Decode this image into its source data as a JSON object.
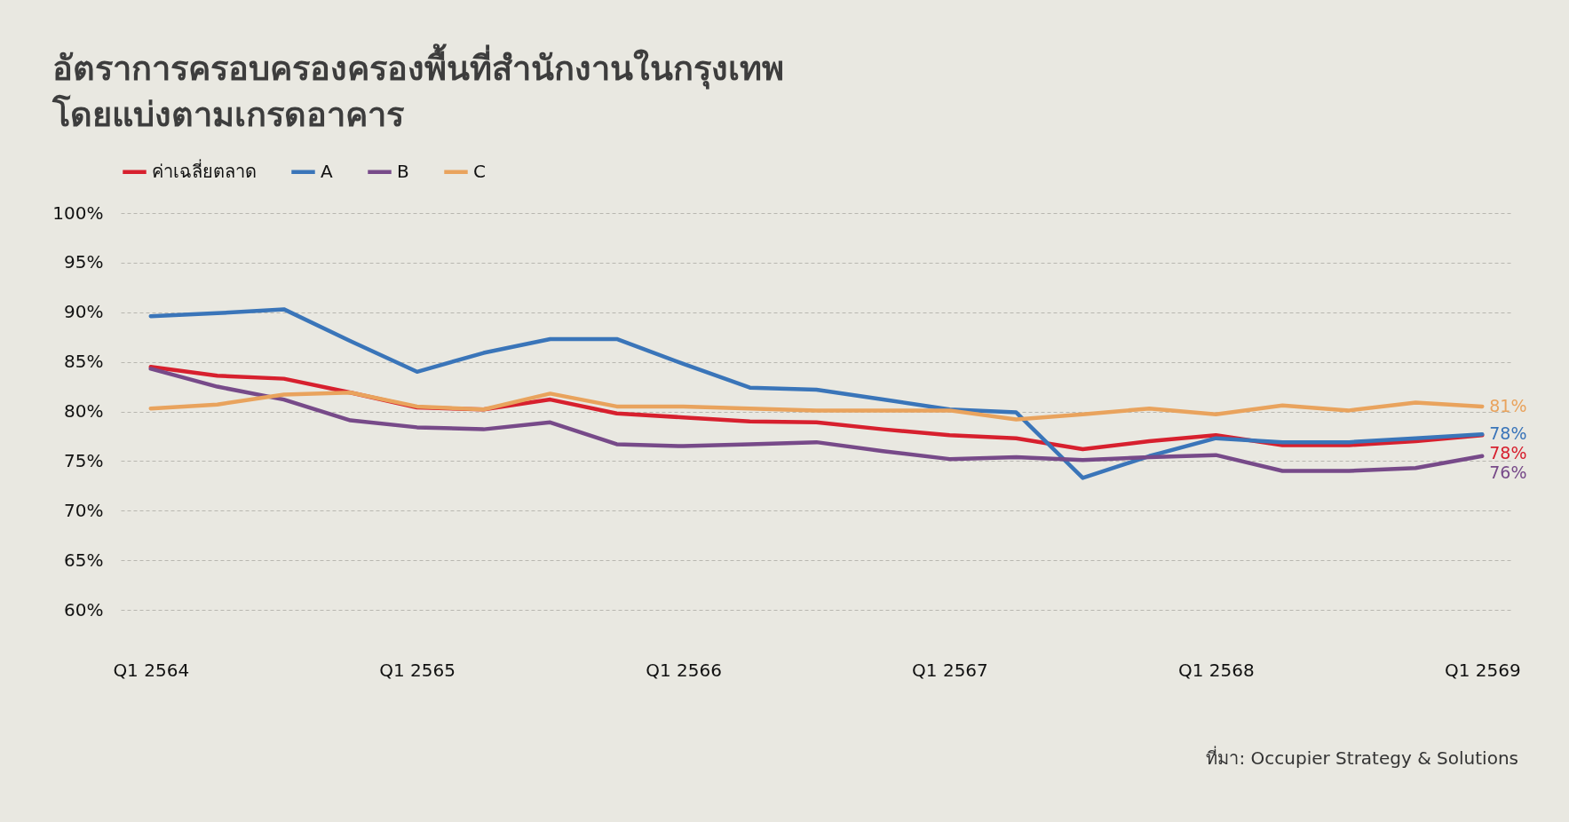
{
  "chart_data": {
    "type": "line",
    "title": "อัตราการครอบครองครองพื้นที่สำนักงานในกรุงเทพ\nโดยแบ่งตามเกรดอาคาร",
    "categories": [
      "Q1 2564",
      null,
      null,
      null,
      "Q1 2565",
      null,
      null,
      null,
      "Q1 2566",
      null,
      null,
      null,
      "Q1 2567",
      null,
      null,
      null,
      "Q1 2568",
      null,
      null,
      null,
      "Q1 2569"
    ],
    "series": [
      {
        "name": "ค่าเฉลี่ยตลาด",
        "color": "#d7202e",
        "values": [
          84.5,
          83.6,
          83.3,
          81.9,
          80.4,
          80.2,
          81.2,
          79.8,
          79.4,
          79.0,
          78.9,
          78.2,
          77.6,
          77.3,
          76.2,
          77.0,
          77.6,
          76.6,
          76.6,
          77.0,
          77.6
        ],
        "value_labels": [
          null,
          null,
          null,
          null,
          null,
          null,
          null,
          null,
          null,
          null,
          null,
          null,
          null,
          null,
          null,
          null,
          null,
          null,
          null,
          null,
          "78%"
        ]
      },
      {
        "name": "A",
        "color": "#3a75b9",
        "values": [
          89.6,
          89.9,
          90.3,
          87.1,
          84.0,
          85.9,
          87.3,
          87.3,
          84.8,
          82.4,
          82.2,
          81.2,
          80.2,
          79.9,
          73.3,
          75.5,
          77.3,
          76.9,
          76.9,
          77.3,
          77.7
        ],
        "value_labels": [
          null,
          null,
          null,
          null,
          null,
          null,
          null,
          null,
          null,
          null,
          null,
          null,
          null,
          null,
          null,
          null,
          null,
          null,
          null,
          null,
          "78%"
        ]
      },
      {
        "name": "B",
        "color": "#774a89",
        "values": [
          84.3,
          82.5,
          81.2,
          79.1,
          78.4,
          78.2,
          78.9,
          76.7,
          76.5,
          76.7,
          76.9,
          76.0,
          75.2,
          75.4,
          75.1,
          75.4,
          75.6,
          74.0,
          74.0,
          74.3,
          75.5
        ],
        "value_labels": [
          null,
          null,
          null,
          null,
          null,
          null,
          null,
          null,
          null,
          null,
          null,
          null,
          null,
          null,
          null,
          null,
          null,
          null,
          null,
          null,
          "76%"
        ]
      },
      {
        "name": "C",
        "color": "#e9a35d",
        "values": [
          80.3,
          80.7,
          81.7,
          81.9,
          80.5,
          80.2,
          81.8,
          80.5,
          80.5,
          80.3,
          80.1,
          80.1,
          80.1,
          79.2,
          79.7,
          80.3,
          79.7,
          80.6,
          80.1,
          80.9,
          80.5
        ],
        "value_labels": [
          null,
          null,
          null,
          null,
          null,
          null,
          null,
          null,
          null,
          null,
          null,
          null,
          null,
          null,
          null,
          null,
          null,
          null,
          null,
          null,
          "81%"
        ]
      }
    ],
    "ylim": [
      60,
      100
    ],
    "yticks": [
      {
        "value": 60,
        "label": "60%"
      },
      {
        "value": 65,
        "label": "65%"
      },
      {
        "value": 70,
        "label": "70%"
      },
      {
        "value": 75,
        "label": "75%"
      },
      {
        "value": 80,
        "label": "80%"
      },
      {
        "value": 85,
        "label": "85%"
      },
      {
        "value": 90,
        "label": "90%"
      },
      {
        "value": 95,
        "label": "95%"
      },
      {
        "value": 100,
        "label": "100%"
      }
    ],
    "grid": "y",
    "legend": "top left",
    "marker": "none",
    "line_style": "solid",
    "annotations": [
      "ที่มา: Occupier Strategy & Solutions"
    ]
  }
}
